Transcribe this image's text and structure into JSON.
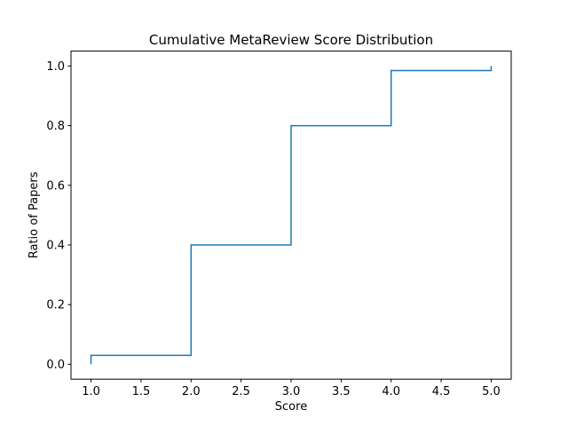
{
  "figure": {
    "background": "#ffffff"
  },
  "chart_data": {
    "type": "line",
    "subtype": "cumulative-step",
    "title": "Cumulative MetaReview Score Distribution",
    "xlabel": "Score",
    "ylabel": "Ratio of Papers",
    "x": [
      1.0,
      2.0,
      3.0,
      4.0,
      5.0
    ],
    "y_start": 0.0,
    "y_cumulative": [
      0.03,
      0.4,
      0.8,
      0.985,
      1.0
    ],
    "xlim": [
      0.8,
      5.2
    ],
    "ylim": [
      -0.05,
      1.05
    ],
    "xticks": [
      1.0,
      1.5,
      2.0,
      2.5,
      3.0,
      3.5,
      4.0,
      4.5,
      5.0
    ],
    "xtick_labels": [
      "1.0",
      "1.5",
      "2.0",
      "2.5",
      "3.0",
      "3.5",
      "4.0",
      "4.5",
      "5.0"
    ],
    "yticks": [
      0.0,
      0.2,
      0.4,
      0.6,
      0.8,
      1.0
    ],
    "ytick_labels": [
      "0.0",
      "0.2",
      "0.4",
      "0.6",
      "0.8",
      "1.0"
    ],
    "line_color": "#1f77b4",
    "axis_color": "#000000",
    "grid": false
  }
}
